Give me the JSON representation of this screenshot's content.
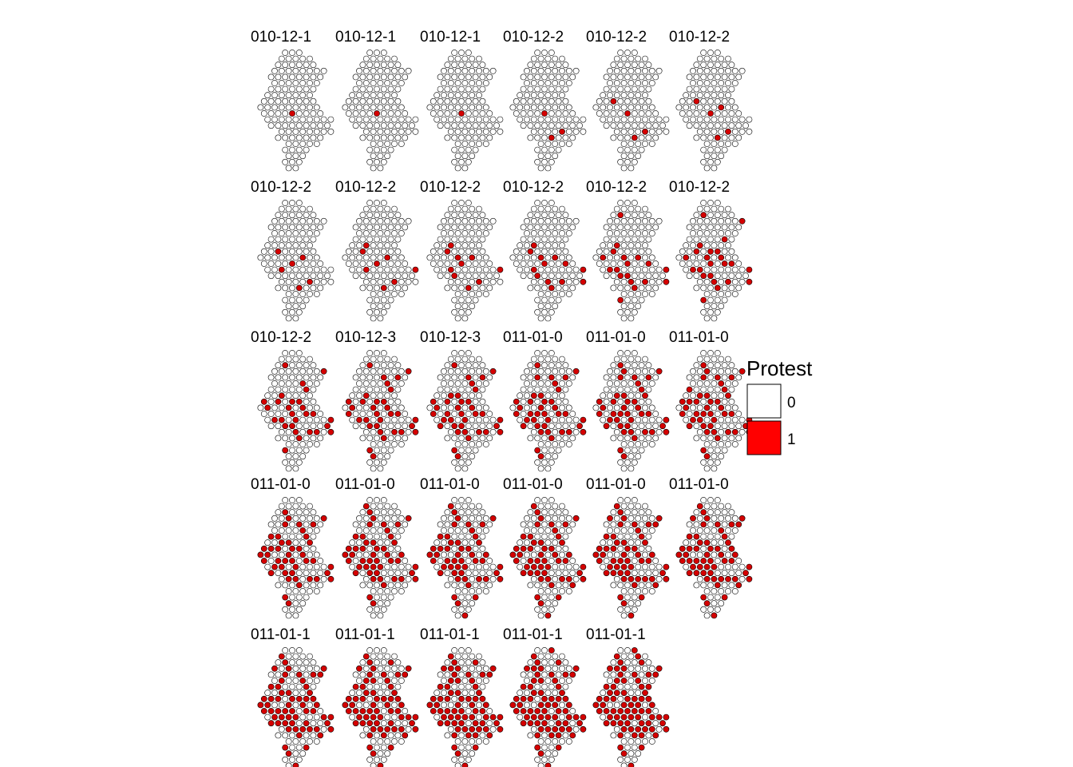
{
  "chart_data": {
    "type": "heatmap",
    "description_type": "small-multiple hexbin maps",
    "panel_titles": [
      "010-12-1",
      "010-12-1",
      "010-12-1",
      "010-12-2",
      "010-12-2",
      "010-12-2",
      "010-12-2",
      "010-12-2",
      "010-12-2",
      "010-12-2",
      "010-12-2",
      "010-12-2",
      "010-12-2",
      "010-12-3",
      "010-12-3",
      "011-01-0",
      "011-01-0",
      "011-01-0",
      "011-01-0",
      "011-01-0",
      "011-01-0",
      "011-01-0",
      "011-01-0",
      "011-01-0",
      "011-01-1",
      "011-01-1",
      "011-01-1",
      "011-01-1",
      "011-01-1"
    ],
    "protest_share": [
      0.01,
      0.01,
      0.01,
      0.02,
      0.03,
      0.04,
      0.05,
      0.06,
      0.08,
      0.1,
      0.14,
      0.18,
      0.22,
      0.25,
      0.28,
      0.3,
      0.31,
      0.33,
      0.34,
      0.37,
      0.38,
      0.4,
      0.42,
      0.44,
      0.47,
      0.5,
      0.53,
      0.55,
      0.58
    ],
    "legend": {
      "title": "Protest",
      "entries": [
        {
          "label": "0",
          "color": "#ffffff"
        },
        {
          "label": "1",
          "color": "#ff0000"
        }
      ]
    },
    "colors": {
      "no_protest": "#ffffff",
      "protest": "#ff0000",
      "protest_cell": "#d40000",
      "stroke": "#000000"
    },
    "grid": false
  }
}
